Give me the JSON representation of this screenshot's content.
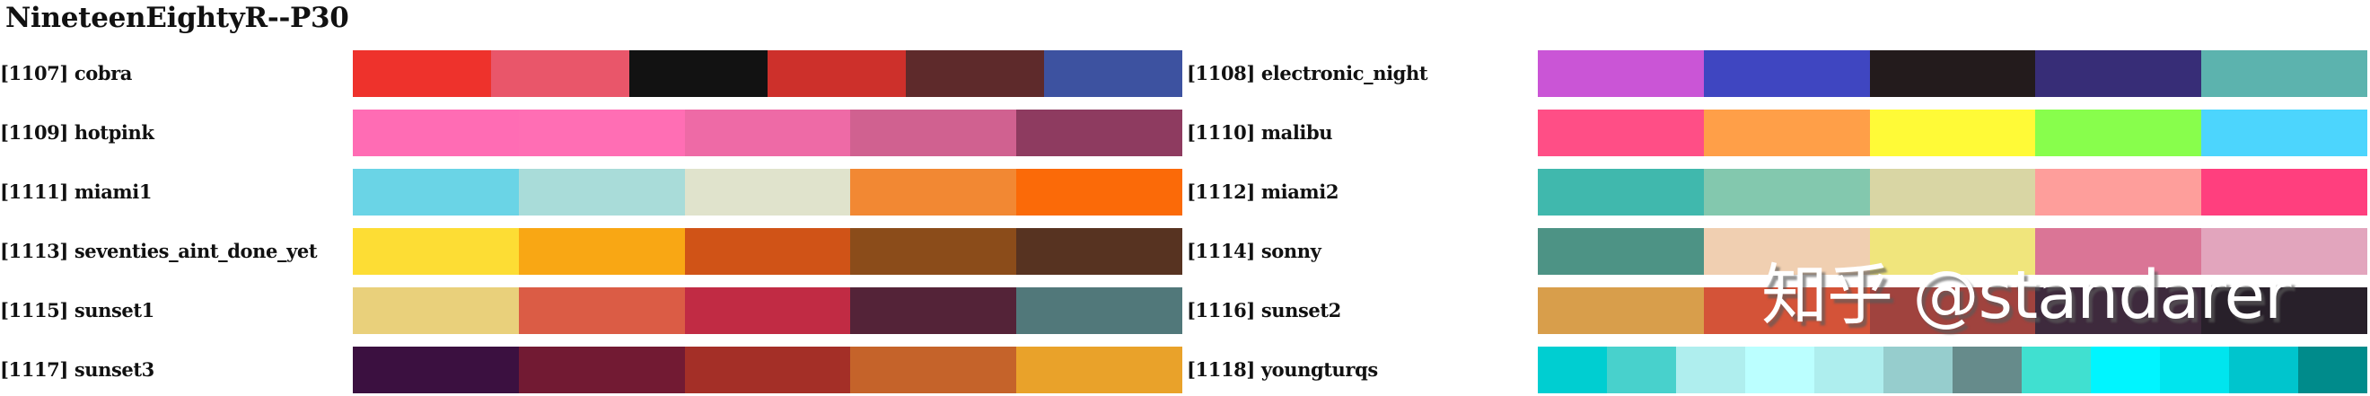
{
  "title": "NineteenEightyR--P30",
  "watermark": "知乎 @standarer",
  "chart_data": {
    "type": "table",
    "title": "NineteenEightyR--P30",
    "description": "Color palette swatch chart: each row shows a named palette with its colors as equal-width swatches",
    "palettes": [
      {
        "id": "1107",
        "name": "cobra",
        "label": "[1107] cobra",
        "colors": [
          "#EE322C",
          "#E9566A",
          "#121212",
          "#CD302B",
          "#5E2A2B",
          "#3D52A0"
        ]
      },
      {
        "id": "1108",
        "name": "electronic_night",
        "label": "[1108] electronic_night",
        "colors": [
          "#CA55D6",
          "#3F46C1",
          "#231B1C",
          "#372D77",
          "#5CB3AE"
        ]
      },
      {
        "id": "1109",
        "name": "hotpink",
        "label": "[1109] hotpink",
        "colors": [
          "#FF6CB4",
          "#FF6EB4",
          "#EE6AA6",
          "#D06190",
          "#8E3B60"
        ]
      },
      {
        "id": "1110",
        "name": "malibu",
        "label": "[1110] malibu",
        "colors": [
          "#FF4E86",
          "#FF9F48",
          "#FFFA37",
          "#88FE4C",
          "#4CD5FD"
        ]
      },
      {
        "id": "1111",
        "name": "miami1",
        "label": "[1111] miami1",
        "colors": [
          "#6AD4E6",
          "#A9DCD9",
          "#E0E3CC",
          "#F28833",
          "#FB6A08"
        ]
      },
      {
        "id": "1112",
        "name": "miami2",
        "label": "[1112] miami2",
        "colors": [
          "#40B8AD",
          "#83C8AE",
          "#D9D6A4",
          "#FE9E9B",
          "#FF3F7E"
        ]
      },
      {
        "id": "1113",
        "name": "seventies_aint_done_yet",
        "label": "[1113] seventies_aint_done_yet",
        "colors": [
          "#FDDD34",
          "#F9A714",
          "#D05317",
          "#8B4C1A",
          "#573321"
        ]
      },
      {
        "id": "1114",
        "name": "sonny",
        "label": "[1114] sonny",
        "colors": [
          "#4D9385",
          "#F0CFB1",
          "#F0E57C",
          "#DA7596",
          "#E2A5BD"
        ]
      },
      {
        "id": "1115",
        "name": "sunset1",
        "label": "[1115] sunset1",
        "colors": [
          "#E9D07B",
          "#DB5C45",
          "#C12B44",
          "#542338",
          "#51787A"
        ]
      },
      {
        "id": "1116",
        "name": "sunset2",
        "label": "[1116] sunset2",
        "colors": [
          "#D89E4B",
          "#D45338",
          "#A0433E",
          "#3E2A3D",
          "#28202A"
        ]
      },
      {
        "id": "1117",
        "name": "sunset3",
        "label": "[1117] sunset3",
        "colors": [
          "#3B1040",
          "#721A33",
          "#A42F27",
          "#C5632A",
          "#E9A22A"
        ]
      },
      {
        "id": "1118",
        "name": "youngturqs",
        "label": "[1118] youngturqs",
        "colors": [
          "#00CED1",
          "#48D1CC",
          "#AFEEEE",
          "#BBFFFF",
          "#AEEEEE",
          "#96CDCD",
          "#668B8B",
          "#40E0D0",
          "#00F5FF",
          "#00E5EE",
          "#00C5CD",
          "#008B8B"
        ]
      }
    ],
    "layout": {
      "columns": 2,
      "rows": 6,
      "legend": "none",
      "grid": false
    }
  },
  "rows": {
    "left": [
      {
        "label": "[1107] cobra",
        "colors": [
          "#EE322C",
          "#E9566A",
          "#121212",
          "#CD302B",
          "#5E2A2B",
          "#3D52A0"
        ]
      },
      {
        "label": "[1109] hotpink",
        "colors": [
          "#FF6CB4",
          "#FF6EB4",
          "#EE6AA6",
          "#D06190",
          "#8E3B60"
        ]
      },
      {
        "label": "[1111] miami1",
        "colors": [
          "#6AD4E6",
          "#A9DCD9",
          "#E0E3CC",
          "#F28833",
          "#FB6A08"
        ]
      },
      {
        "label": "[1113] seventies_aint_done_yet",
        "colors": [
          "#FDDD34",
          "#F9A714",
          "#D05317",
          "#8B4C1A",
          "#573321"
        ]
      },
      {
        "label": "[1115] sunset1",
        "colors": [
          "#E9D07B",
          "#DB5C45",
          "#C12B44",
          "#542338",
          "#51787A"
        ]
      },
      {
        "label": "[1117] sunset3",
        "colors": [
          "#3B1040",
          "#721A33",
          "#A42F27",
          "#C5632A",
          "#E9A22A"
        ]
      }
    ],
    "right": [
      {
        "label": "[1108] electronic_night",
        "colors": [
          "#CA55D6",
          "#3F46C1",
          "#231B1C",
          "#372D77",
          "#5CB3AE"
        ]
      },
      {
        "label": "[1110] malibu",
        "colors": [
          "#FF4E86",
          "#FF9F48",
          "#FFFA37",
          "#88FE4C",
          "#4CD5FD"
        ]
      },
      {
        "label": "[1112] miami2",
        "colors": [
          "#40B8AD",
          "#83C8AE",
          "#D9D6A4",
          "#FE9E9B",
          "#FF3F7E"
        ]
      },
      {
        "label": "[1114] sonny",
        "colors": [
          "#4D9385",
          "#F0CFB1",
          "#F0E57C",
          "#DA7596",
          "#E2A5BD"
        ]
      },
      {
        "label": "[1116] sunset2",
        "colors": [
          "#D89E4B",
          "#D45338",
          "#A0433E",
          "#3E2A3D",
          "#28202A"
        ]
      },
      {
        "label": "[1118] youngturqs",
        "colors": [
          "#00CED1",
          "#48D1CC",
          "#AFEEEE",
          "#BBFFFF",
          "#AEEEEE",
          "#96CDCD",
          "#668B8B",
          "#40E0D0",
          "#00F5FF",
          "#00E5EE",
          "#00C5CD",
          "#008B8B"
        ]
      }
    ]
  }
}
